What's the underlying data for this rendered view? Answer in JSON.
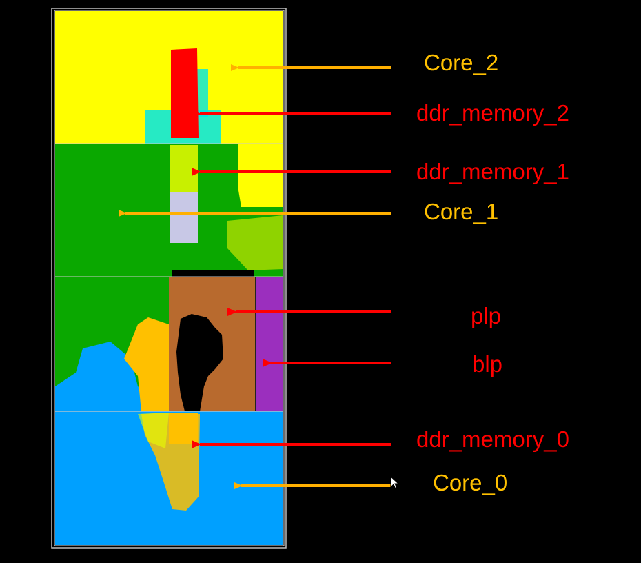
{
  "labels": {
    "core_2": "Core_2",
    "ddr_memory_2": "ddr_memory_2",
    "ddr_memory_1": "ddr_memory_1",
    "core_1": "Core_1",
    "plp": "plp",
    "blp": "blp",
    "ddr_memory_0": "ddr_memory_0",
    "core_0": "Core_0"
  },
  "colors": {
    "background": "#000000",
    "core_2": "#ffff00",
    "core_1": "#0aa800",
    "core_0": "#00a0ff",
    "ddr_memory_2": "#ff0000",
    "ddr_memory_1_top": "#c8f000",
    "ddr_memory_1_bottom": "#c8c8e6",
    "ddr_memory_0": "#ffc000",
    "plp": "#b86a2e",
    "blp": "#9b2fbe",
    "cyan_spill": "#00e6e6",
    "arrow_core": "#ffb000",
    "arrow_ddr": "#ff0000",
    "label_core": "#ffc000",
    "label_ddr": "#ff0000",
    "frame": "#c0c0c0"
  }
}
